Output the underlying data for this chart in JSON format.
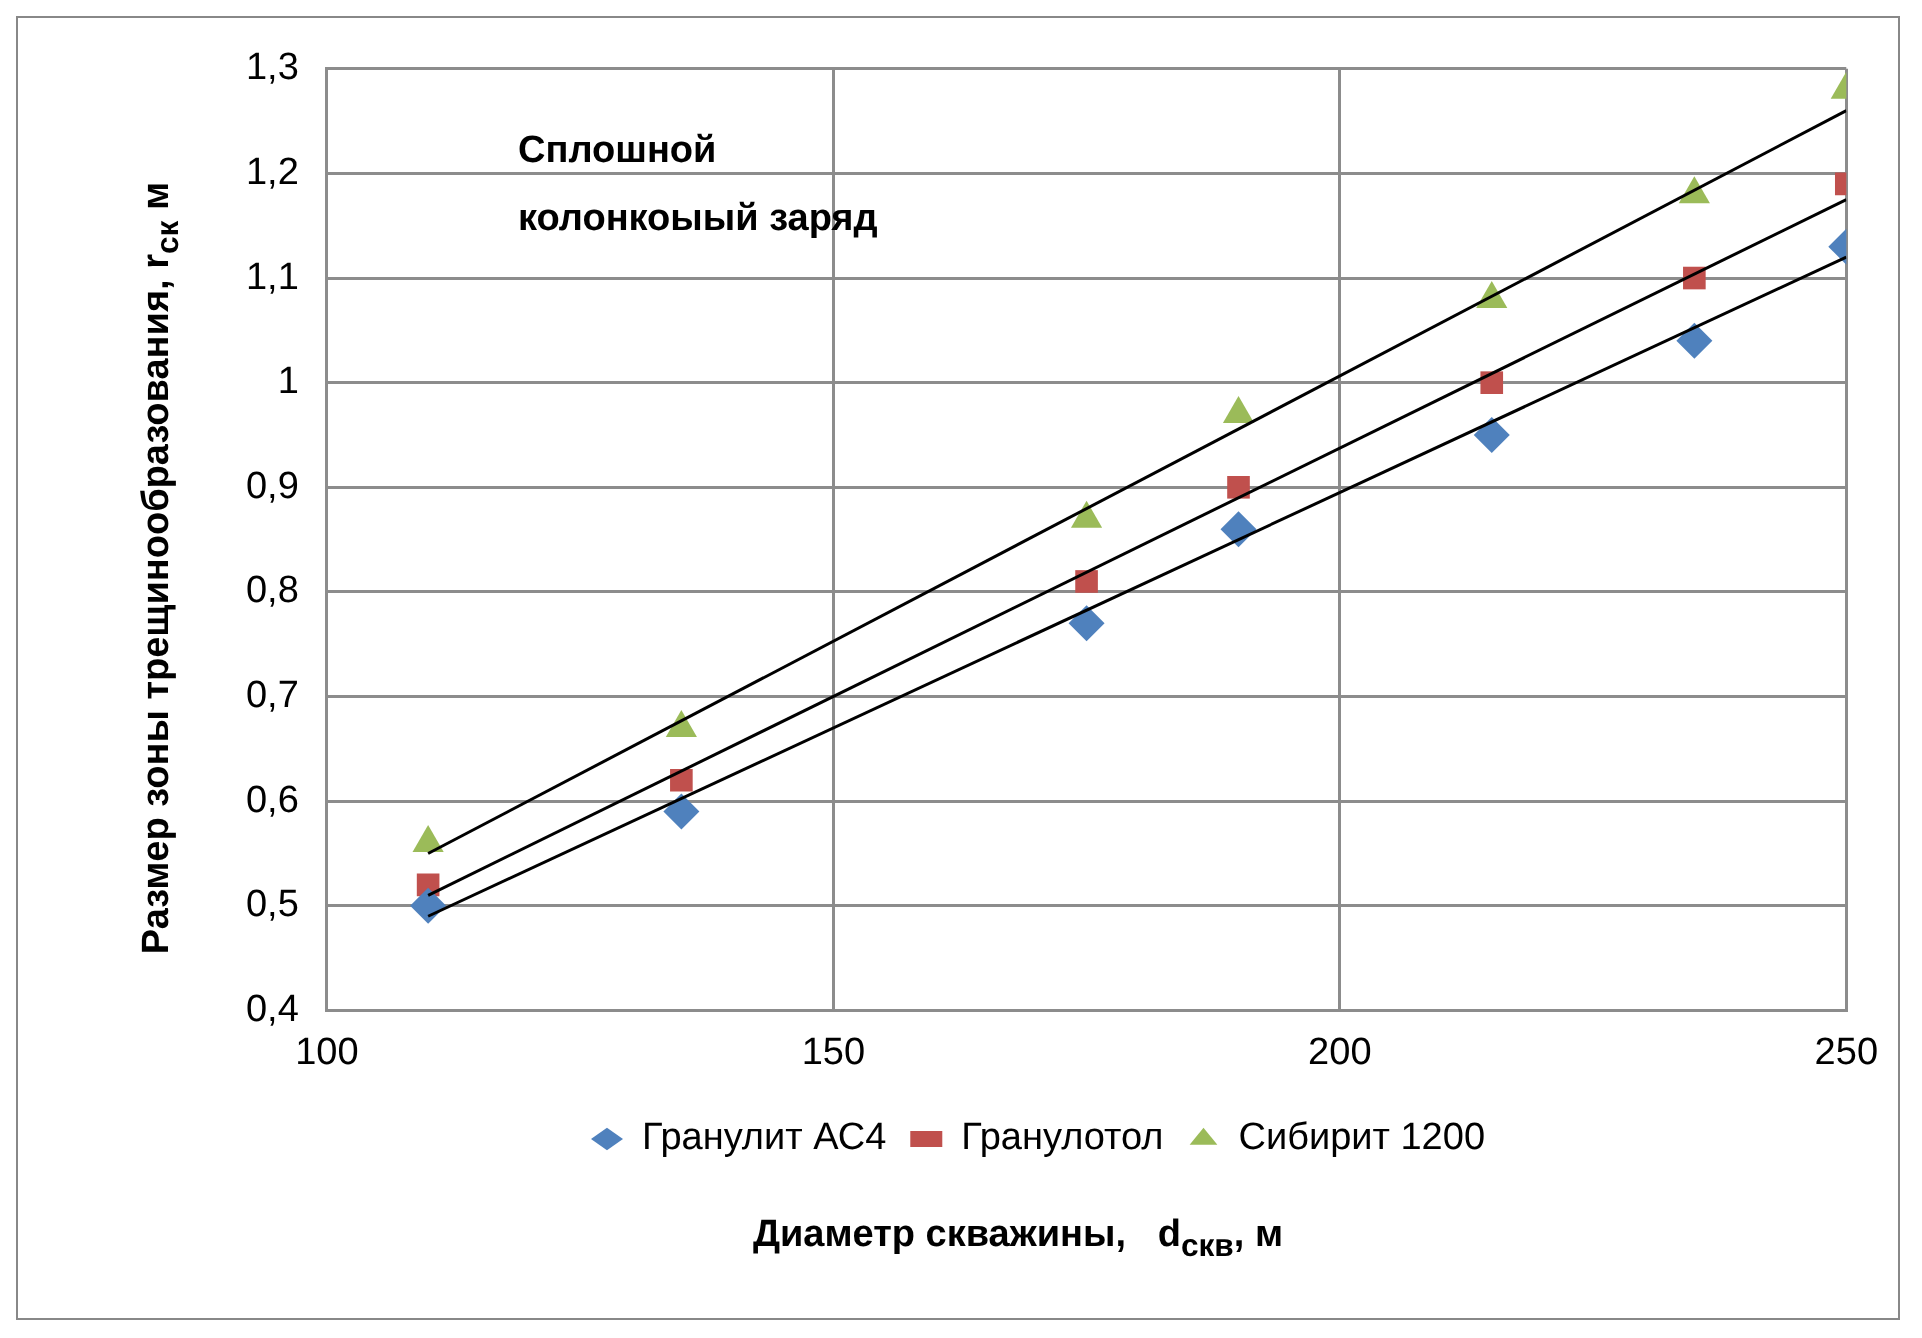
{
  "chart_data": {
    "type": "scatter",
    "xlabel": "Диаметр скважины,   d$_{скв}$, м",
    "ylabel": "Размер зоны трещинообразования,  r$_{ск}$ м",
    "annotations": [
      "Сплошной колонкоыый заряд"
    ],
    "xlim": [
      100,
      250
    ],
    "xticks": [
      100,
      150,
      200,
      250
    ],
    "ylim": [
      0.4,
      1.3
    ],
    "yticks": [
      {
        "value": 0.4,
        "label": "0,4"
      },
      {
        "value": 0.5,
        "label": "0,5"
      },
      {
        "value": 0.6,
        "label": "0,6"
      },
      {
        "value": 0.7,
        "label": "0,7"
      },
      {
        "value": 0.8,
        "label": "0,8"
      },
      {
        "value": 0.9,
        "label": "0,9"
      },
      1,
      {
        "value": 1.1,
        "label": "1,1"
      },
      {
        "value": 1.2,
        "label": "1,2"
      },
      {
        "value": 1.3,
        "label": "1,3"
      }
    ],
    "grid": true,
    "legend": "bottom",
    "series": [
      {
        "name": "Гранулит АС4",
        "color": "#4f81bd",
        "marker": "diamond",
        "x": [
          110,
          135,
          175,
          190,
          215,
          235,
          250
        ],
        "values": [
          0.5,
          0.59,
          0.77,
          0.86,
          0.95,
          1.04,
          1.13
        ]
      },
      {
        "name": "Гранулотол",
        "color": "#c0504d",
        "marker": "square",
        "x": [
          110,
          135,
          175,
          190,
          215,
          235,
          250
        ],
        "values": [
          0.52,
          0.62,
          0.81,
          0.9,
          1.0,
          1.1,
          1.19
        ]
      },
      {
        "name": "Сибирит 1200",
        "color": "#9bbb59",
        "marker": "triangle",
        "x": [
          110,
          135,
          175,
          190,
          215,
          235,
          250
        ],
        "values": [
          0.56,
          0.67,
          0.87,
          0.97,
          1.08,
          1.18,
          1.28
        ]
      },
      {
        "type": "line",
        "color": "#000000",
        "marker": "none",
        "x": [
          110,
          250
        ],
        "values": [
          0.49,
          1.12
        ]
      },
      {
        "type": "line",
        "color": "#000000",
        "marker": "none",
        "x": [
          110,
          250
        ],
        "values": [
          0.51,
          1.175
        ]
      },
      {
        "type": "line",
        "color": "#000000",
        "marker": "none",
        "x": [
          110,
          250
        ],
        "values": [
          0.55,
          1.26
        ]
      }
    ]
  }
}
